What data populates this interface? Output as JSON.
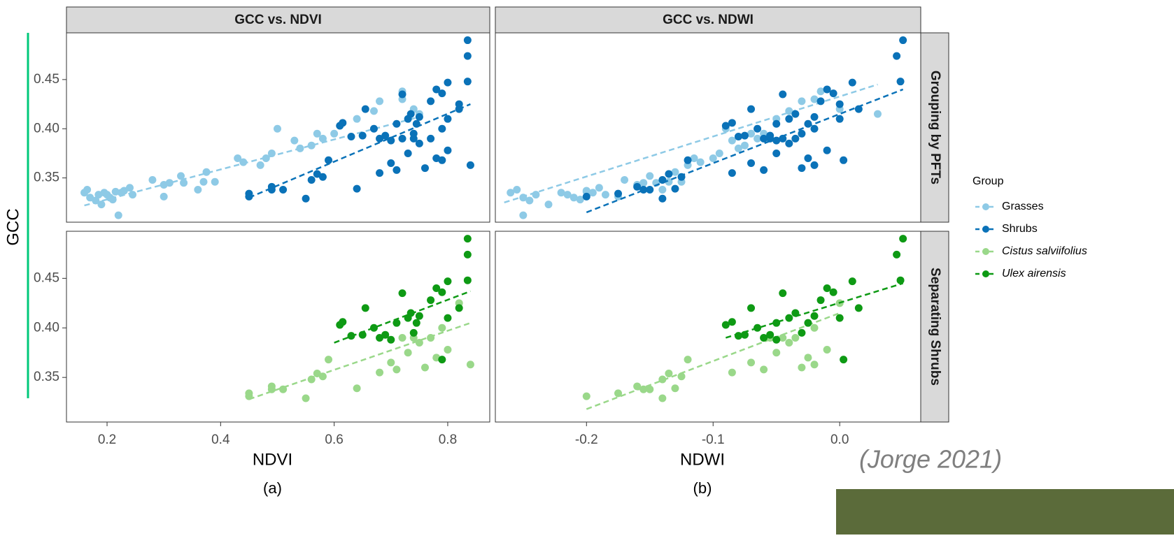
{
  "chart_data": {
    "type": "scatter",
    "y_label": "GCC",
    "ylim": [
      0.305,
      0.4975
    ],
    "yticks": [
      0.35,
      {
        "value": 0.4,
        "label": "0.40"
      },
      0.45
    ],
    "legend_title": "Group",
    "columns": [
      {
        "title": "GCC vs. NDVI",
        "x_label": "NDVI",
        "caption": "(a)",
        "xlim": [
          0.1285,
          0.874
        ],
        "xticks": [
          0.2,
          0.4,
          0.6,
          0.8
        ]
      },
      {
        "title": "GCC vs. NDWI",
        "x_label": "NDWI",
        "caption": "(b)",
        "xlim": [
          -0.272,
          0.064
        ],
        "xticks": [
          -0.2,
          -0.1,
          {
            "value": 0,
            "label": "0.0"
          }
        ]
      }
    ],
    "rows": [
      {
        "label": "Grouping by PFTs",
        "series": [
          {
            "name": "Grasses",
            "color": "#8ecae6",
            "panels": [
              {
                "x": [
                  0.16,
                  0.165,
                  0.17,
                  0.18,
                  0.185,
                  0.19,
                  0.195,
                  0.2,
                  0.205,
                  0.21,
                  0.215,
                  0.22,
                  0.225,
                  0.23,
                  0.24,
                  0.245,
                  0.28,
                  0.3,
                  0.3,
                  0.31,
                  0.33,
                  0.335,
                  0.36,
                  0.37,
                  0.375,
                  0.39,
                  0.43,
                  0.44,
                  0.47,
                  0.48,
                  0.49,
                  0.5,
                  0.53,
                  0.54,
                  0.56,
                  0.57,
                  0.58,
                  0.6,
                  0.64,
                  0.67,
                  0.68,
                  0.72,
                  0.72,
                  0.74,
                  0.75
                ],
                "values": [
                  0.335,
                  0.338,
                  0.33,
                  0.327,
                  0.333,
                  0.323,
                  0.335,
                  0.333,
                  0.33,
                  0.328,
                  0.336,
                  0.312,
                  0.335,
                  0.337,
                  0.34,
                  0.333,
                  0.348,
                  0.343,
                  0.331,
                  0.345,
                  0.352,
                  0.345,
                  0.338,
                  0.346,
                  0.356,
                  0.346,
                  0.37,
                  0.366,
                  0.363,
                  0.37,
                  0.375,
                  0.4,
                  0.388,
                  0.38,
                  0.383,
                  0.395,
                  0.39,
                  0.395,
                  0.41,
                  0.418,
                  0.428,
                  0.43,
                  0.438,
                  0.42,
                  0.415
                ],
                "trend": {
                  "x": [
                    0.16,
                    0.75
                  ],
                  "values": [
                    0.322,
                    0.412
                  ]
                }
              },
              {
                "x": [
                  -0.26,
                  -0.255,
                  -0.25,
                  -0.245,
                  -0.24,
                  -0.23,
                  -0.22,
                  -0.215,
                  -0.21,
                  -0.205,
                  -0.2,
                  -0.25,
                  -0.195,
                  -0.2,
                  -0.19,
                  -0.185,
                  -0.17,
                  -0.16,
                  -0.175,
                  -0.155,
                  -0.15,
                  -0.145,
                  -0.14,
                  -0.135,
                  -0.13,
                  -0.125,
                  -0.115,
                  -0.11,
                  -0.12,
                  -0.1,
                  -0.095,
                  -0.09,
                  -0.085,
                  -0.08,
                  -0.075,
                  -0.07,
                  -0.065,
                  -0.06,
                  -0.05,
                  -0.04,
                  -0.03,
                  -0.02,
                  -0.015,
                  0.0,
                  0.03
                ],
                "values": [
                  0.335,
                  0.338,
                  0.33,
                  0.327,
                  0.333,
                  0.323,
                  0.335,
                  0.333,
                  0.33,
                  0.328,
                  0.336,
                  0.312,
                  0.335,
                  0.337,
                  0.34,
                  0.333,
                  0.348,
                  0.343,
                  0.331,
                  0.345,
                  0.352,
                  0.345,
                  0.338,
                  0.346,
                  0.356,
                  0.346,
                  0.37,
                  0.366,
                  0.363,
                  0.37,
                  0.375,
                  0.4,
                  0.388,
                  0.38,
                  0.383,
                  0.395,
                  0.39,
                  0.395,
                  0.41,
                  0.418,
                  0.428,
                  0.43,
                  0.438,
                  0.42,
                  0.415
                ],
                "trend": {
                  "x": [
                    -0.265,
                    0.03
                  ],
                  "values": [
                    0.325,
                    0.445
                  ]
                }
              }
            ]
          },
          {
            "name": "Shrubs",
            "color": "#0a72b8",
            "panels": [
              {
                "x": [
                  0.45,
                  0.45,
                  0.49,
                  0.49,
                  0.51,
                  0.55,
                  0.56,
                  0.57,
                  0.58,
                  0.59,
                  0.64,
                  0.68,
                  0.7,
                  0.71,
                  0.73,
                  0.74,
                  0.75,
                  0.76,
                  0.77,
                  0.78,
                  0.79,
                  0.8,
                  0.82,
                  0.84,
                  0.72,
                  0.61,
                  0.615,
                  0.63,
                  0.65,
                  0.655,
                  0.67,
                  0.68,
                  0.69,
                  0.71,
                  0.72,
                  0.73,
                  0.735,
                  0.74,
                  0.745,
                  0.75,
                  0.77,
                  0.78,
                  0.79,
                  0.8,
                  0.79,
                  0.8,
                  0.82,
                  0.835,
                  0.835,
                  0.835,
                  0.7
                ],
                "values": [
                  0.331,
                  0.334,
                  0.341,
                  0.338,
                  0.338,
                  0.329,
                  0.348,
                  0.354,
                  0.351,
                  0.368,
                  0.339,
                  0.355,
                  0.365,
                  0.358,
                  0.375,
                  0.39,
                  0.385,
                  0.36,
                  0.39,
                  0.37,
                  0.4,
                  0.378,
                  0.425,
                  0.363,
                  0.39,
                  0.403,
                  0.406,
                  0.392,
                  0.393,
                  0.42,
                  0.4,
                  0.39,
                  0.393,
                  0.405,
                  0.435,
                  0.41,
                  0.415,
                  0.395,
                  0.405,
                  0.412,
                  0.428,
                  0.44,
                  0.436,
                  0.447,
                  0.368,
                  0.41,
                  0.42,
                  0.474,
                  0.49,
                  0.448,
                  0.388
                ],
                "trend": {
                  "x": [
                    0.45,
                    0.84
                  ],
                  "values": [
                    0.33,
                    0.425
                  ]
                }
              },
              {
                "x": [
                  -0.2,
                  -0.175,
                  -0.16,
                  -0.155,
                  -0.15,
                  -0.14,
                  -0.14,
                  -0.135,
                  -0.125,
                  -0.12,
                  -0.13,
                  -0.085,
                  -0.07,
                  -0.06,
                  -0.05,
                  -0.055,
                  -0.04,
                  -0.03,
                  -0.035,
                  -0.025,
                  -0.02,
                  -0.01,
                  0.0,
                  -0.02,
                  -0.045,
                  -0.09,
                  -0.085,
                  -0.08,
                  -0.075,
                  -0.07,
                  -0.065,
                  -0.06,
                  -0.055,
                  -0.05,
                  -0.045,
                  -0.04,
                  -0.035,
                  -0.03,
                  -0.025,
                  -0.02,
                  -0.015,
                  -0.01,
                  -0.005,
                  0.01,
                  0.003,
                  0.0,
                  0.015,
                  0.045,
                  0.05,
                  0.048,
                  -0.05
                ],
                "values": [
                  0.331,
                  0.334,
                  0.341,
                  0.338,
                  0.338,
                  0.329,
                  0.348,
                  0.354,
                  0.351,
                  0.368,
                  0.339,
                  0.355,
                  0.365,
                  0.358,
                  0.375,
                  0.39,
                  0.385,
                  0.36,
                  0.39,
                  0.37,
                  0.4,
                  0.378,
                  0.425,
                  0.363,
                  0.39,
                  0.403,
                  0.406,
                  0.392,
                  0.393,
                  0.42,
                  0.4,
                  0.39,
                  0.393,
                  0.405,
                  0.435,
                  0.41,
                  0.415,
                  0.395,
                  0.405,
                  0.412,
                  0.428,
                  0.44,
                  0.436,
                  0.447,
                  0.368,
                  0.41,
                  0.42,
                  0.474,
                  0.49,
                  0.448,
                  0.388
                ],
                "trend": {
                  "x": [
                    -0.2,
                    0.05
                  ],
                  "values": [
                    0.315,
                    0.44
                  ]
                }
              }
            ]
          }
        ]
      },
      {
        "label": "Separating Shrubs",
        "series": [
          {
            "name": "Cistus salviifolius",
            "color": "#9ad88a",
            "panels": [
              {
                "x": [
                  0.45,
                  0.45,
                  0.49,
                  0.49,
                  0.51,
                  0.55,
                  0.56,
                  0.57,
                  0.58,
                  0.59,
                  0.64,
                  0.68,
                  0.7,
                  0.71,
                  0.73,
                  0.74,
                  0.75,
                  0.76,
                  0.77,
                  0.78,
                  0.79,
                  0.8,
                  0.82,
                  0.84,
                  0.72
                ],
                "values": [
                  0.331,
                  0.334,
                  0.341,
                  0.338,
                  0.338,
                  0.329,
                  0.348,
                  0.354,
                  0.351,
                  0.368,
                  0.339,
                  0.355,
                  0.365,
                  0.358,
                  0.375,
                  0.39,
                  0.385,
                  0.36,
                  0.39,
                  0.37,
                  0.4,
                  0.378,
                  0.425,
                  0.363,
                  0.39
                ],
                "trend": {
                  "x": [
                    0.45,
                    0.84
                  ],
                  "values": [
                    0.328,
                    0.405
                  ]
                }
              },
              {
                "x": [
                  -0.2,
                  -0.175,
                  -0.16,
                  -0.155,
                  -0.15,
                  -0.14,
                  -0.14,
                  -0.135,
                  -0.125,
                  -0.12,
                  -0.13,
                  -0.085,
                  -0.07,
                  -0.06,
                  -0.05,
                  -0.055,
                  -0.04,
                  -0.03,
                  -0.035,
                  -0.025,
                  -0.02,
                  -0.01,
                  0.0,
                  -0.02,
                  -0.045
                ],
                "values": [
                  0.331,
                  0.334,
                  0.341,
                  0.338,
                  0.338,
                  0.329,
                  0.348,
                  0.354,
                  0.351,
                  0.368,
                  0.339,
                  0.355,
                  0.365,
                  0.358,
                  0.375,
                  0.39,
                  0.385,
                  0.36,
                  0.39,
                  0.37,
                  0.4,
                  0.378,
                  0.425,
                  0.363,
                  0.39
                ],
                "trend": {
                  "x": [
                    -0.2,
                    0.0
                  ],
                  "values": [
                    0.318,
                    0.415
                  ]
                }
              }
            ]
          },
          {
            "name": "Ulex airensis",
            "color": "#0e9a14",
            "panels": [
              {
                "x": [
                  0.61,
                  0.615,
                  0.63,
                  0.65,
                  0.655,
                  0.67,
                  0.68,
                  0.69,
                  0.71,
                  0.72,
                  0.73,
                  0.735,
                  0.74,
                  0.745,
                  0.75,
                  0.77,
                  0.78,
                  0.79,
                  0.8,
                  0.79,
                  0.8,
                  0.82,
                  0.835,
                  0.835,
                  0.835,
                  0.7
                ],
                "values": [
                  0.403,
                  0.406,
                  0.392,
                  0.393,
                  0.42,
                  0.4,
                  0.39,
                  0.393,
                  0.405,
                  0.435,
                  0.41,
                  0.415,
                  0.395,
                  0.405,
                  0.412,
                  0.428,
                  0.44,
                  0.436,
                  0.447,
                  0.368,
                  0.41,
                  0.42,
                  0.474,
                  0.49,
                  0.448,
                  0.388
                ],
                "trend": {
                  "x": [
                    0.6,
                    0.84
                  ],
                  "values": [
                    0.385,
                    0.437
                  ]
                }
              },
              {
                "x": [
                  -0.09,
                  -0.085,
                  -0.08,
                  -0.075,
                  -0.07,
                  -0.065,
                  -0.06,
                  -0.055,
                  -0.05,
                  -0.045,
                  -0.04,
                  -0.035,
                  -0.03,
                  -0.025,
                  -0.02,
                  -0.015,
                  -0.01,
                  -0.005,
                  0.01,
                  0.003,
                  0.0,
                  0.015,
                  0.045,
                  0.05,
                  0.048,
                  -0.05
                ],
                "values": [
                  0.403,
                  0.406,
                  0.392,
                  0.393,
                  0.42,
                  0.4,
                  0.39,
                  0.393,
                  0.405,
                  0.435,
                  0.41,
                  0.415,
                  0.395,
                  0.405,
                  0.412,
                  0.428,
                  0.44,
                  0.436,
                  0.447,
                  0.368,
                  0.41,
                  0.42,
                  0.474,
                  0.49,
                  0.448,
                  0.388
                ],
                "trend": {
                  "x": [
                    -0.09,
                    0.05
                  ],
                  "values": [
                    0.39,
                    0.445
                  ]
                }
              }
            ]
          }
        ]
      }
    ]
  },
  "citation": "(Jorge 2021)"
}
